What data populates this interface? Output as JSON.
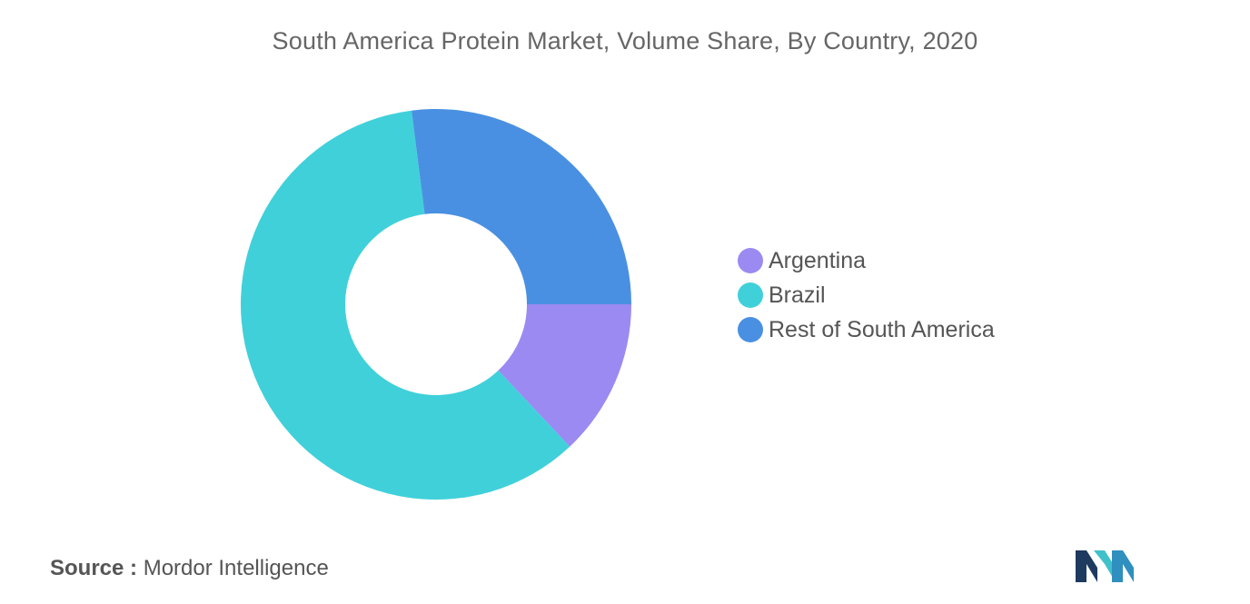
{
  "chart_data": {
    "type": "pie",
    "variant": "donut",
    "title": "South America Protein Market, Volume Share, By Country, 2020",
    "categories": [
      "Argentina",
      "Brazil",
      "Rest of South America"
    ],
    "values": [
      13,
      60,
      27
    ],
    "unit": "%",
    "colors": [
      "#9B8AF2",
      "#40D0DA",
      "#4A90E2"
    ],
    "legend_position": "right",
    "start_angle": "3 o'clock, clockwise"
  },
  "source": {
    "label": "Source :",
    "text": "Mordor Intelligence"
  },
  "logo": {
    "icon": "mordor-intelligence-logo",
    "colors": [
      "#1E3A5F",
      "#3FC1C9"
    ]
  }
}
